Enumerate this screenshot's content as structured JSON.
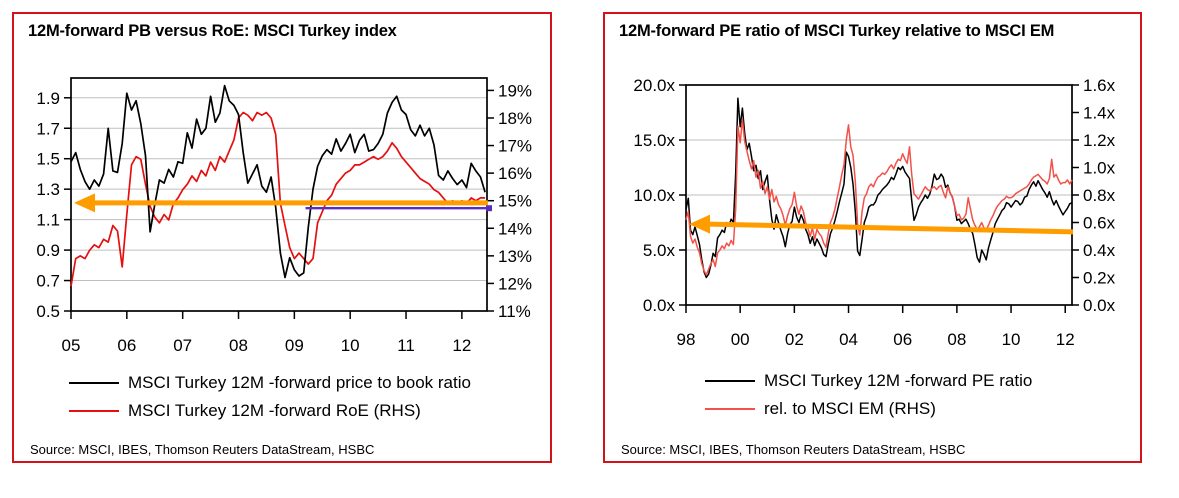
{
  "chart_data": [
    {
      "type": "line",
      "title": "12M-forward PB versus RoE: MSCI Turkey index",
      "source": "Source: MSCI, IBES, Thomson Reuters DataStream, HSBC",
      "legend_position": "bottom",
      "grid": "horizontal",
      "x_axis": {
        "min": 2005,
        "max": 2012.45,
        "tick_values": [
          2005,
          2006,
          2007,
          2008,
          2009,
          2010,
          2011,
          2012
        ],
        "tick_labels": [
          "05",
          "06",
          "07",
          "08",
          "09",
          "10",
          "11",
          "12"
        ]
      },
      "y_left": {
        "min": 0.5,
        "max": 2.03,
        "tick_values": [
          1.9,
          1.7,
          1.5,
          1.3,
          1.1,
          0.9,
          0.7,
          0.5
        ],
        "tick_labels": [
          "1.9",
          "1.7",
          "1.5",
          "1.3",
          "1.1",
          "0.9",
          "0.7",
          "0.5"
        ],
        "gridline_values": [
          1.9,
          1.7,
          1.5,
          1.3,
          1.1,
          0.9,
          0.7
        ]
      },
      "y_right": {
        "min": 11,
        "max": 19.45,
        "tick_values": [
          19,
          18,
          17,
          16,
          15,
          14,
          13,
          12,
          11
        ],
        "tick_labels": [
          "19%",
          "18%",
          "17%",
          "16%",
          "15%",
          "14%",
          "13%",
          "12%",
          "11%"
        ]
      },
      "series": [
        {
          "name": "MSCI Turkey 12M -forward price to book ratio",
          "axis": "left",
          "color": "#000000",
          "width": 1.7,
          "x_start": 2005.0,
          "x_step": 0.0833333,
          "values": [
            1.48,
            1.54,
            1.43,
            1.35,
            1.3,
            1.36,
            1.32,
            1.4,
            1.7,
            1.42,
            1.41,
            1.6,
            1.93,
            1.82,
            1.88,
            1.73,
            1.52,
            1.02,
            1.2,
            1.36,
            1.34,
            1.43,
            1.38,
            1.48,
            1.47,
            1.67,
            1.57,
            1.76,
            1.66,
            1.7,
            1.91,
            1.74,
            1.8,
            1.98,
            1.88,
            1.85,
            1.79,
            1.54,
            1.34,
            1.4,
            1.46,
            1.32,
            1.28,
            1.38,
            1.18,
            0.88,
            0.72,
            0.85,
            0.77,
            0.73,
            0.75,
            1.05,
            1.3,
            1.45,
            1.52,
            1.56,
            1.53,
            1.63,
            1.55,
            1.6,
            1.66,
            1.54,
            1.62,
            1.66,
            1.55,
            1.56,
            1.6,
            1.66,
            1.8,
            1.87,
            1.91,
            1.82,
            1.79,
            1.69,
            1.65,
            1.72,
            1.65,
            1.7,
            1.59,
            1.39,
            1.36,
            1.42,
            1.37,
            1.33,
            1.36,
            1.31,
            1.47,
            1.42,
            1.38,
            1.28
          ]
        },
        {
          "name": "MSCI Turkey 12M -forward RoE (RHS)",
          "axis": "right",
          "color": "#e60f0f",
          "width": 1.7,
          "x_start": 2005.0,
          "x_step": 0.0833333,
          "values": [
            11.9,
            12.9,
            13.0,
            12.9,
            13.2,
            13.4,
            13.3,
            13.6,
            13.5,
            14.1,
            13.9,
            12.6,
            14.5,
            16.3,
            16.6,
            16.5,
            15.6,
            14.8,
            14.4,
            14.2,
            14.5,
            14.3,
            14.9,
            15.1,
            15.4,
            15.6,
            15.9,
            15.7,
            16.1,
            15.9,
            16.4,
            16.1,
            16.6,
            16.4,
            16.8,
            17.2,
            18.0,
            18.2,
            18.1,
            17.9,
            18.2,
            18.1,
            18.2,
            18.0,
            17.4,
            14.9,
            14.1,
            13.3,
            12.9,
            13.1,
            12.9,
            12.7,
            12.9,
            14.2,
            14.6,
            15.0,
            15.2,
            15.6,
            15.8,
            16.0,
            16.1,
            16.3,
            16.3,
            16.4,
            16.5,
            16.6,
            16.5,
            16.6,
            16.8,
            17.1,
            16.9,
            16.6,
            16.4,
            16.2,
            16.0,
            15.8,
            15.7,
            15.6,
            15.4,
            15.3,
            15.1,
            14.9,
            15.0,
            14.9,
            15.0,
            14.9,
            15.1,
            15.0,
            15.1,
            15.1
          ]
        }
      ],
      "annotations": {
        "arrow": {
          "shape": "left-pointing-arrow",
          "color": "#ff9c00",
          "axis": "left",
          "y_at_left": 1.21,
          "y_at_right": 1.21
        },
        "purple_line": {
          "color": "#5a2fc0",
          "axis": "left",
          "y": 1.175,
          "x_from": 2009.2
        }
      },
      "legend": [
        {
          "label": "MSCI Turkey 12M -forward price to book ratio",
          "color": "#000000"
        },
        {
          "label": "MSCI Turkey 12M -forward RoE (RHS)",
          "color": "#e60f0f"
        }
      ]
    },
    {
      "type": "line",
      "title": "12M-forward PE ratio of MSCI Turkey relative to MSCI EM",
      "source": "Source: MSCI, IBES, Thomson Reuters DataStream, HSBC",
      "legend_position": "bottom",
      "grid": "horizontal",
      "x_axis": {
        "min": 1998,
        "max": 2012.25,
        "tick_values": [
          1998,
          2000,
          2002,
          2004,
          2006,
          2008,
          2010,
          2012
        ],
        "tick_labels": [
          "98",
          "00",
          "02",
          "04",
          "06",
          "08",
          "10",
          "12"
        ]
      },
      "y_left": {
        "min": 0,
        "max": 20,
        "tick_values": [
          20,
          15,
          10,
          5,
          0
        ],
        "tick_labels": [
          "20.0x",
          "15.0x",
          "10.0x",
          "5.0x",
          "0.0x"
        ],
        "gridline_values": [
          15,
          10,
          5
        ]
      },
      "y_right": {
        "min": 0,
        "max": 1.6,
        "tick_values": [
          1.6,
          1.4,
          1.2,
          1.0,
          0.8,
          0.6,
          0.4,
          0.2,
          0.0
        ],
        "tick_labels": [
          "1.6x",
          "1.4x",
          "1.2x",
          "1.0x",
          "0.8x",
          "0.6x",
          "0.4x",
          "0.2x",
          "0.0x"
        ]
      },
      "series": [
        {
          "name": "MSCI Turkey 12M -forward PE ratio",
          "axis": "left",
          "color": "#000000",
          "width": 1.5,
          "x_start": 1998.0,
          "x_step": 0.0833333,
          "values": [
            8.7,
            9.7,
            6.8,
            6.4,
            7.1,
            6.3,
            5.5,
            4.1,
            3.0,
            2.5,
            2.8,
            3.6,
            4.7,
            4.4,
            6.1,
            6.4,
            6.8,
            6.6,
            7.5,
            7.2,
            7.8,
            7.5,
            12.0,
            18.8,
            16.2,
            17.9,
            15.6,
            14.1,
            14.7,
            13.5,
            12.2,
            12.7,
            11.5,
            12.2,
            10.5,
            11.2,
            11.8,
            9.6,
            7.8,
            6.9,
            8.2,
            7.5,
            6.8,
            6.2,
            5.3,
            6.5,
            7.3,
            7.6,
            8.9,
            8.0,
            7.5,
            8.2,
            7.7,
            6.9,
            6.4,
            5.6,
            6.2,
            5.4,
            6.0,
            5.6,
            5.2,
            4.6,
            4.4,
            5.5,
            6.5,
            7.0,
            7.7,
            8.5,
            9.4,
            10.2,
            11.0,
            13.9,
            13.5,
            12.5,
            11.0,
            8.5,
            4.9,
            4.5,
            6.0,
            7.5,
            8.1,
            8.9,
            9.1,
            9.1,
            9.4,
            10.0,
            10.2,
            10.5,
            10.7,
            10.9,
            11.2,
            11.6,
            11.4,
            11.9,
            12.5,
            12.3,
            12.6,
            12.1,
            11.8,
            11.5,
            9.5,
            7.7,
            8.2,
            8.9,
            9.3,
            9.6,
            10.0,
            9.7,
            10.1,
            10.8,
            11.9,
            11.4,
            11.5,
            11.9,
            11.6,
            10.7,
            10.9,
            10.2,
            9.8,
            9.0,
            7.7,
            7.8,
            7.4,
            7.6,
            7.8,
            7.4,
            6.9,
            6.5,
            5.5,
            4.3,
            3.9,
            5.0,
            4.6,
            4.1,
            5.2,
            5.9,
            6.6,
            7.4,
            7.8,
            8.2,
            8.6,
            8.8,
            9.3,
            9.2,
            8.9,
            9.2,
            9.5,
            9.4,
            9.1,
            9.3,
            9.8,
            9.9,
            10.5,
            10.9,
            11.2,
            10.8,
            11.3,
            10.9,
            10.5,
            10.2,
            9.8,
            10.3,
            9.6,
            9.1,
            9.5,
            9.0,
            8.6,
            8.2,
            8.5,
            8.8,
            9.2,
            9.3
          ]
        },
        {
          "name": "rel. to MSCI EM (RHS)",
          "axis": "right",
          "color": "#f25249",
          "width": 1.5,
          "x_start": 1998.0,
          "x_step": 0.0833333,
          "values": [
            0.62,
            0.68,
            0.5,
            0.45,
            0.48,
            0.42,
            0.38,
            0.3,
            0.25,
            0.22,
            0.26,
            0.3,
            0.33,
            0.28,
            0.38,
            0.4,
            0.43,
            0.41,
            0.45,
            0.43,
            0.47,
            0.44,
            0.7,
            1.3,
            1.18,
            1.35,
            1.19,
            1.12,
            1.05,
            0.99,
            1.05,
            0.93,
            0.98,
            0.85,
            0.9,
            0.81,
            0.86,
            0.77,
            0.84,
            0.75,
            0.79,
            0.73,
            0.7,
            0.65,
            0.58,
            0.65,
            0.7,
            0.73,
            0.82,
            0.72,
            0.66,
            0.72,
            0.68,
            0.6,
            0.56,
            0.5,
            0.56,
            0.48,
            0.55,
            0.52,
            0.5,
            0.45,
            0.42,
            0.52,
            0.6,
            0.64,
            0.7,
            0.78,
            0.86,
            0.95,
            1.02,
            1.2,
            1.31,
            1.15,
            1.09,
            0.9,
            0.59,
            0.51,
            0.68,
            0.78,
            0.81,
            0.86,
            0.88,
            0.86,
            0.9,
            0.93,
            0.94,
            0.96,
            0.95,
            0.97,
            1.0,
            1.02,
            0.99,
            1.03,
            1.06,
            1.05,
            1.1,
            1.06,
            1.03,
            1.15,
            0.95,
            0.81,
            0.79,
            0.77,
            0.8,
            0.83,
            0.86,
            0.84,
            0.83,
            0.85,
            0.86,
            0.84,
            0.86,
            0.87,
            0.82,
            0.78,
            0.86,
            0.82,
            0.78,
            0.72,
            0.65,
            0.66,
            0.62,
            0.63,
            0.66,
            0.78,
            0.7,
            0.62,
            0.58,
            0.55,
            0.57,
            0.6,
            0.56,
            0.55,
            0.58,
            0.62,
            0.65,
            0.69,
            0.72,
            0.74,
            0.76,
            0.77,
            0.79,
            0.78,
            0.78,
            0.79,
            0.81,
            0.82,
            0.83,
            0.84,
            0.85,
            0.86,
            0.88,
            0.91,
            0.93,
            0.94,
            0.95,
            0.93,
            0.91,
            0.9,
            0.88,
            0.92,
            1.06,
            0.93,
            0.95,
            0.91,
            0.88,
            0.89,
            0.89,
            0.91,
            0.88,
            0.91
          ]
        }
      ],
      "annotations": {
        "arrow": {
          "shape": "left-pointing-arrow",
          "color": "#ff9c00",
          "axis": "left",
          "y_at_left": 7.35,
          "y_at_right": 6.65
        }
      },
      "legend": [
        {
          "label": "MSCI Turkey 12M -forward PE ratio",
          "color": "#000000"
        },
        {
          "label": "rel. to MSCI EM (RHS)",
          "color": "#f25249"
        }
      ]
    }
  ],
  "colors": {
    "panel_border": "#d21419",
    "gridline": "#bfbfbf",
    "axis": "#000000",
    "arrow_orange": "#ff9c00",
    "purple_line": "#5a2fc0"
  }
}
